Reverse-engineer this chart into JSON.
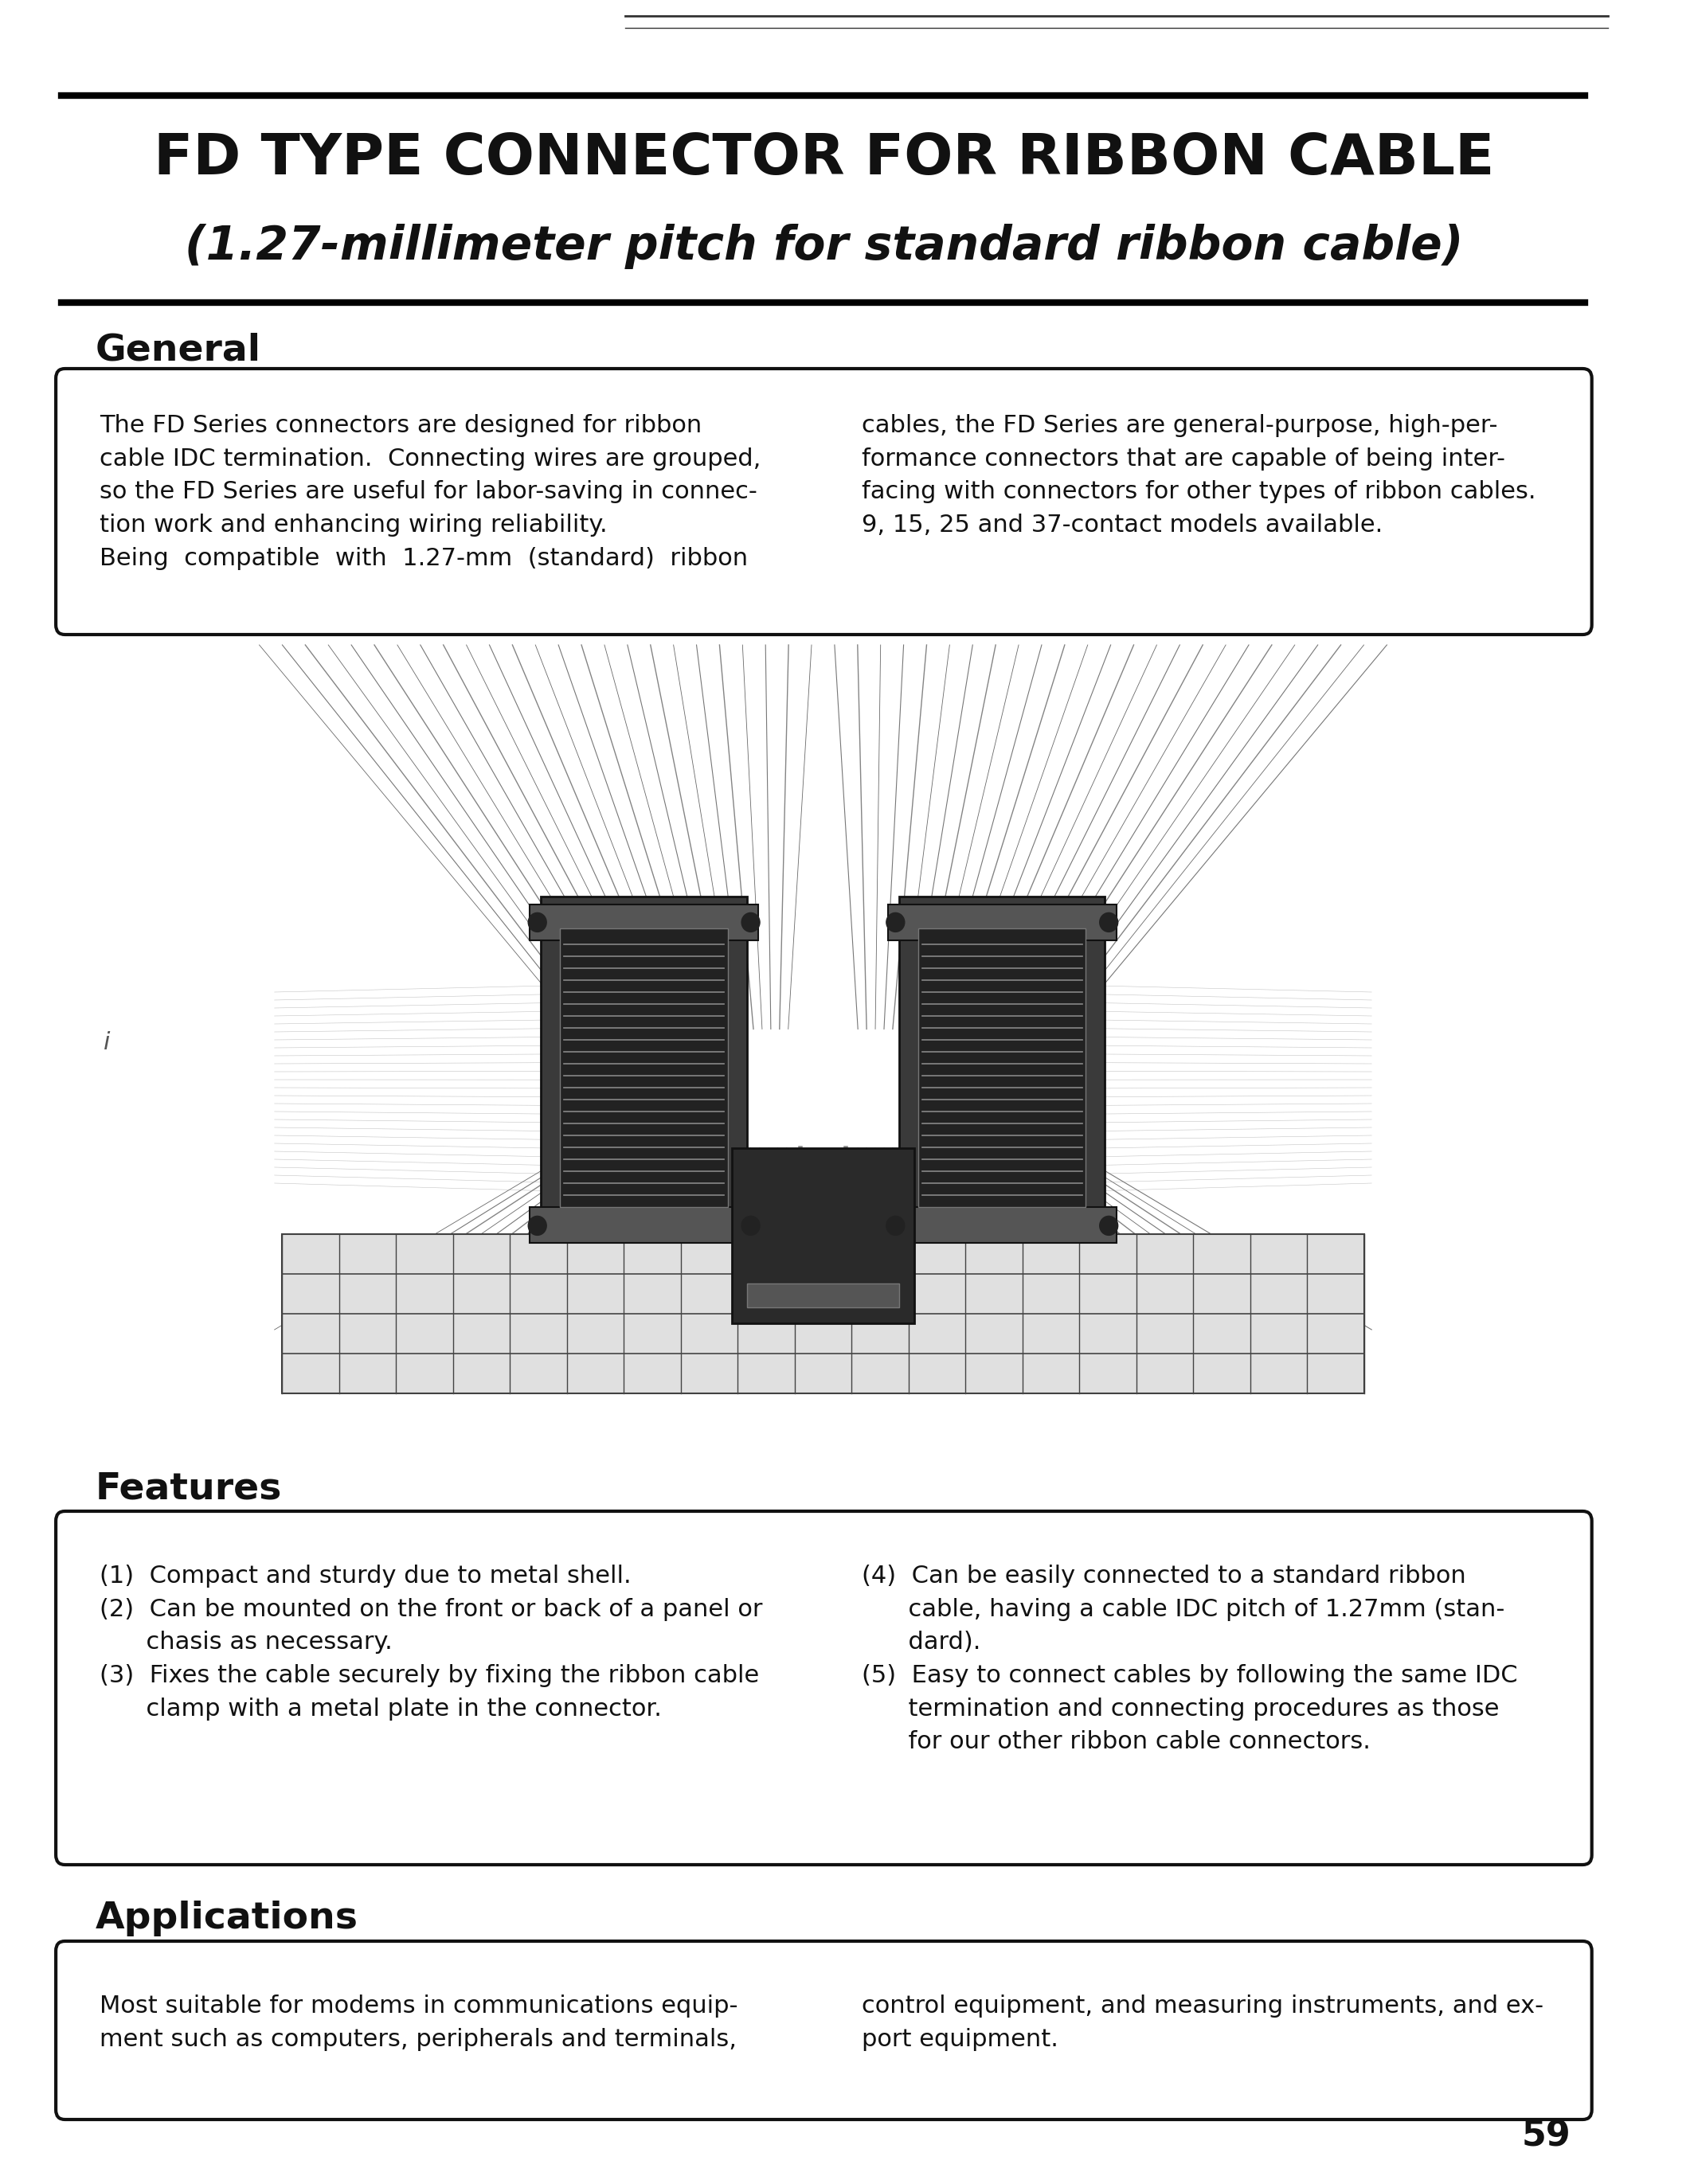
{
  "bg_color": "#ffffff",
  "title_line1": "FD TYPE CONNECTOR FOR RIBBON CABLE",
  "title_line2": "(1.27-millimeter pitch for standard ribbon cable)",
  "section_general": "General",
  "gen_left_1": "The FD Series connectors are designed for ribbon",
  "gen_left_2": "cable IDC termination.  Connecting wires are grouped,",
  "gen_left_3": "so the FD Series are useful for labor-saving in connec-",
  "gen_left_4": "tion work and enhancing wiring reliability.",
  "gen_left_5": "Being  compatible  with  1.27-mm  (standard)  ribbon",
  "gen_right_1": "cables, the FD Series are general-purpose, high-per-",
  "gen_right_2": "formance connectors that are capable of being inter-",
  "gen_right_3": "facing with connectors for other types of ribbon cables.",
  "gen_right_4": "9, 15, 25 and 37-contact models available.",
  "section_features": "Features",
  "feat_left_1": "(1)  Compact and sturdy due to metal shell.",
  "feat_left_2": "(2)  Can be mounted on the front or back of a panel or",
  "feat_left_3": "      chasis as necessary.",
  "feat_left_4": "(3)  Fixes the cable securely by fixing the ribbon cable",
  "feat_left_5": "      clamp with a metal plate in the connector.",
  "feat_right_1": "(4)  Can be easily connected to a standard ribbon",
  "feat_right_2": "      cable, having a cable IDC pitch of 1.27mm (stan-",
  "feat_right_3": "      dard).",
  "feat_right_4": "(5)  Easy to connect cables by following the same IDC",
  "feat_right_5": "      termination and connecting procedures as those",
  "feat_right_6": "      for our other ribbon cable connectors.",
  "section_applications": "Applications",
  "app_left_1": "Most suitable for modems in communications equip-",
  "app_left_2": "ment such as computers, peripherals and terminals,",
  "app_right_1": "control equipment, and measuring instruments, and ex-",
  "app_right_2": "port equipment.",
  "page_number": "59",
  "text_color": "#111111",
  "box_border_color": "#111111",
  "title_bar_color": "#000000"
}
